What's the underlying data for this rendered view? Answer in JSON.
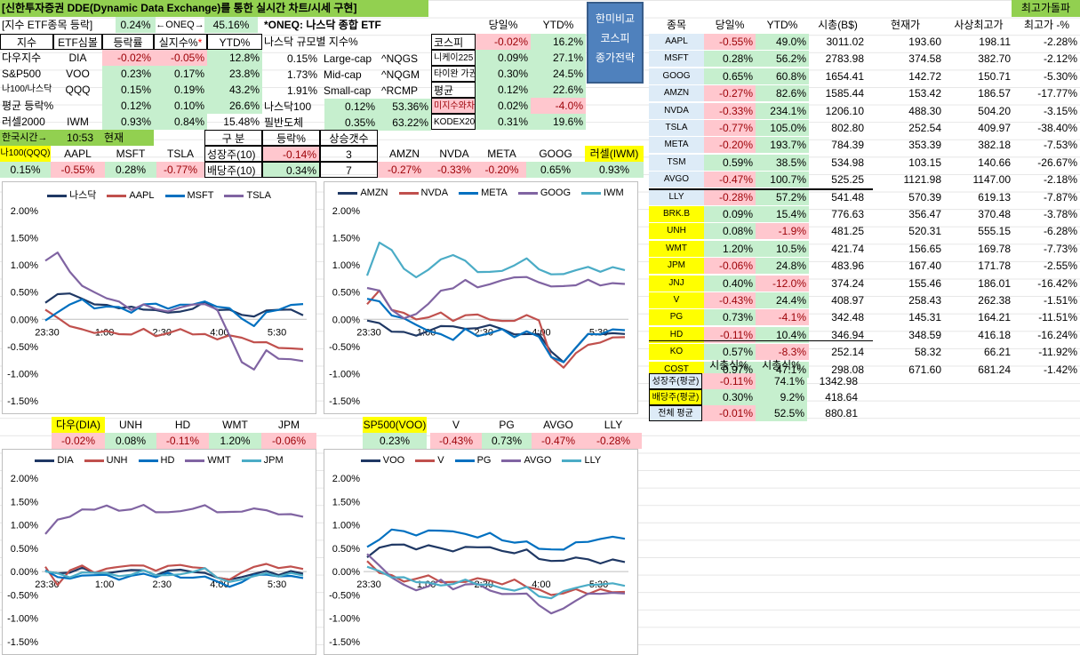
{
  "header": {
    "title": "[신한투자증권 DDE(Dynamic Data Exchange)를 통한 실시간 차트/시세 구현]",
    "top_right": "최고가돌파"
  },
  "index_panel": {
    "label": "[지수 ETF종목 등락]",
    "pct": "0.24%",
    "oneq_label": "←ONEQ→",
    "oneq_val": "45.16%",
    "headers": [
      "지수",
      "ETF심볼",
      "등락률",
      "실지수%",
      "YTD%"
    ],
    "star": "*",
    "rows": [
      {
        "name": "다우지수",
        "sym": "DIA",
        "chg": "-0.02%",
        "real": "-0.05%",
        "ytd": "12.8%"
      },
      {
        "name": "S&P500",
        "sym": "VOO",
        "chg": "0.23%",
        "real": "0.17%",
        "ytd": "23.8%"
      },
      {
        "name": "나100/나스닥",
        "sym": "QQQ",
        "chg": "0.15%",
        "real": "0.19%",
        "ytd": "43.2%"
      },
      {
        "name": "평균 등락%",
        "sym": "",
        "chg": "0.12%",
        "real": "0.10%",
        "ytd": "26.6%"
      },
      {
        "name": "러셀2000",
        "sym": "IWM",
        "chg": "0.93%",
        "real": "0.84%",
        "ytd": "15.48%"
      }
    ],
    "kr_time_label": "한국시간→",
    "kr_time": "10:53",
    "kr_now": "현재"
  },
  "oneq": {
    "title": "*ONEQ: 나스닥 종합 ETF",
    "sub": "나스닥 규모별 지수%",
    "rows": [
      {
        "pct": "0.15%",
        "name": "Large-cap",
        "sym": "^NQGS"
      },
      {
        "pct": "1.73%",
        "name": "Mid-cap",
        "sym": "^NQGM"
      },
      {
        "pct": "1.91%",
        "name": "Small-cap",
        "sym": "^RCMP"
      }
    ],
    "n100_label": "나스닥100",
    "n100_a": "0.12%",
    "n100_b": "53.36%",
    "phil_label": "필반도체",
    "phil_a": "0.35%",
    "phil_b": "63.22%"
  },
  "asia": {
    "headers": [
      "",
      "당일%",
      "YTD%"
    ],
    "rows": [
      {
        "name": "코스피",
        "day": "-0.02%",
        "ytd": "16.2%"
      },
      {
        "name": "니케이225",
        "day": "0.09%",
        "ytd": "27.1%"
      },
      {
        "name": "타이완 가권",
        "day": "0.30%",
        "ytd": "24.5%"
      },
      {
        "name": "평균",
        "day": "0.12%",
        "ytd": "22.6%"
      },
      {
        "name": "미지수와차",
        "day": "0.02%",
        "ytd": "-4.0%"
      },
      {
        "name": "KODEX200",
        "day": "0.31%",
        "ytd": "19.6%"
      }
    ]
  },
  "compare_button": {
    "line1": "한미비교",
    "line2": "코스피",
    "line3": "종가전략"
  },
  "growth_div": {
    "h1": "구 분",
    "h2": "등락%",
    "h3": "상승갯수",
    "r1": {
      "name": "성장주(10)",
      "chg": "-0.14%",
      "cnt": "3"
    },
    "r2": {
      "name": "배당주(10)",
      "chg": "0.34%",
      "cnt": "7"
    }
  },
  "ticker_row1": {
    "labels": [
      "나100(QQQ)",
      "AAPL",
      "MSFT",
      "TSLA",
      "AMZN",
      "NVDA",
      "META",
      "GOOG",
      "러셀(IWM)"
    ],
    "values": [
      "0.15%",
      "-0.55%",
      "0.28%",
      "-0.77%",
      "-0.27%",
      "-0.33%",
      "-0.20%",
      "0.65%",
      "0.93%"
    ]
  },
  "ticker_row2": {
    "labels": [
      "다우(DIA)",
      "UNH",
      "HD",
      "WMT",
      "JPM",
      "SP500(VOO)",
      "V",
      "PG",
      "AVGO",
      "LLY"
    ],
    "values": [
      "-0.02%",
      "0.08%",
      "-0.11%",
      "1.20%",
      "-0.06%",
      "0.23%",
      "-0.43%",
      "0.73%",
      "-0.47%",
      "-0.28%"
    ]
  },
  "stocks": {
    "headers": [
      "종목",
      "당일%",
      "YTD%",
      "시총(B$)",
      "현재가",
      "사상최고가",
      "최고가 -%"
    ],
    "rows": [
      {
        "sym": "AAPL",
        "day": "-0.55%",
        "ytd": "49.0%",
        "cap": "3011.02",
        "price": "193.60",
        "high": "198.11",
        "off": "-2.28%"
      },
      {
        "sym": "MSFT",
        "day": "0.28%",
        "ytd": "56.2%",
        "cap": "2783.98",
        "price": "374.58",
        "high": "382.70",
        "off": "-2.12%"
      },
      {
        "sym": "GOOG",
        "day": "0.65%",
        "ytd": "60.8%",
        "cap": "1654.41",
        "price": "142.72",
        "high": "150.71",
        "off": "-5.30%"
      },
      {
        "sym": "AMZN",
        "day": "-0.27%",
        "ytd": "82.6%",
        "cap": "1585.44",
        "price": "153.42",
        "high": "186.57",
        "off": "-17.77%"
      },
      {
        "sym": "NVDA",
        "day": "-0.33%",
        "ytd": "234.1%",
        "cap": "1206.10",
        "price": "488.30",
        "high": "504.20",
        "off": "-3.15%"
      },
      {
        "sym": "TSLA",
        "day": "-0.77%",
        "ytd": "105.0%",
        "cap": "802.80",
        "price": "252.54",
        "high": "409.97",
        "off": "-38.40%"
      },
      {
        "sym": "META",
        "day": "-0.20%",
        "ytd": "193.7%",
        "cap": "784.39",
        "price": "353.39",
        "high": "382.18",
        "off": "-7.53%"
      },
      {
        "sym": "TSM",
        "day": "0.59%",
        "ytd": "38.5%",
        "cap": "534.98",
        "price": "103.15",
        "high": "140.66",
        "off": "-26.67%"
      },
      {
        "sym": "AVGO",
        "day": "-0.47%",
        "ytd": "100.7%",
        "cap": "525.25",
        "price": "1121.98",
        "high": "1147.00",
        "off": "-2.18%"
      },
      {
        "sym": "LLY",
        "day": "-0.28%",
        "ytd": "57.2%",
        "cap": "541.48",
        "price": "570.39",
        "high": "619.13",
        "off": "-7.87%"
      },
      {
        "sym": "BRK.B",
        "day": "0.09%",
        "ytd": "15.4%",
        "cap": "776.63",
        "price": "356.47",
        "high": "370.48",
        "off": "-3.78%"
      },
      {
        "sym": "UNH",
        "day": "0.08%",
        "ytd": "-1.9%",
        "cap": "481.25",
        "price": "520.31",
        "high": "555.15",
        "off": "-6.28%"
      },
      {
        "sym": "WMT",
        "day": "1.20%",
        "ytd": "10.5%",
        "cap": "421.74",
        "price": "156.65",
        "high": "169.78",
        "off": "-7.73%"
      },
      {
        "sym": "JPM",
        "day": "-0.06%",
        "ytd": "24.8%",
        "cap": "483.96",
        "price": "167.40",
        "high": "171.78",
        "off": "-2.55%"
      },
      {
        "sym": "JNJ",
        "day": "0.40%",
        "ytd": "-12.0%",
        "cap": "374.24",
        "price": "155.46",
        "high": "186.01",
        "off": "-16.42%"
      },
      {
        "sym": "V",
        "day": "-0.43%",
        "ytd": "24.4%",
        "cap": "408.97",
        "price": "258.43",
        "high": "262.38",
        "off": "-1.51%"
      },
      {
        "sym": "PG",
        "day": "0.73%",
        "ytd": "-4.1%",
        "cap": "342.48",
        "price": "145.31",
        "high": "164.21",
        "off": "-11.51%"
      },
      {
        "sym": "HD",
        "day": "-0.11%",
        "ytd": "10.4%",
        "cap": "346.94",
        "price": "348.59",
        "high": "416.18",
        "off": "-16.24%"
      },
      {
        "sym": "KO",
        "day": "0.57%",
        "ytd": "-8.3%",
        "cap": "252.14",
        "price": "58.32",
        "high": "66.21",
        "off": "-11.92%"
      },
      {
        "sym": "COST",
        "day": "0.97%",
        "ytd": "47.1%",
        "cap": "298.08",
        "price": "671.60",
        "high": "681.24",
        "off": "-1.42%"
      }
    ]
  },
  "summary": {
    "h1": "시총식%",
    "h2": "시총식%",
    "rows": [
      {
        "name": "성장주(평균)",
        "a": "-0.11%",
        "b": "74.1%",
        "c": "1342.98"
      },
      {
        "name": "배당주(평균)",
        "a": "0.30%",
        "b": "9.2%",
        "c": "418.64"
      },
      {
        "name": "전체 평균",
        "a": "-0.01%",
        "b": "52.5%",
        "c": "880.81"
      }
    ]
  },
  "colors": {
    "navy": "#1f3864",
    "red": "#c0504d",
    "blue": "#0070c0",
    "purple": "#8064a2",
    "teal": "#4bacc6"
  },
  "chart_data": [
    {
      "type": "line",
      "title": "",
      "x_ticks": [
        "23:30",
        "1:00",
        "2:30",
        "4:00",
        "5:30"
      ],
      "y_ticks": [
        "2.00%",
        "1.50%",
        "1.00%",
        "0.50%",
        "0.00%",
        "-0.50%",
        "-1.00%",
        "-1.50%"
      ],
      "ylim": [
        -1.5,
        2.0
      ],
      "series": [
        {
          "name": "나스닥",
          "color": "#1f3864",
          "values": [
            0.3,
            0.45,
            0.5,
            0.35,
            0.3,
            0.25,
            0.2,
            0.25,
            0.15,
            0.2,
            0.1,
            0.15,
            0.2,
            0.3,
            0.2,
            0.15,
            0.1,
            0.05,
            0.15,
            0.2,
            0.15,
            0.1
          ]
        },
        {
          "name": "AAPL",
          "color": "#c0504d",
          "values": [
            0.2,
            0.0,
            -0.1,
            -0.2,
            -0.25,
            -0.2,
            -0.3,
            -0.25,
            -0.2,
            -0.3,
            -0.25,
            -0.2,
            -0.25,
            -0.3,
            -0.35,
            -0.3,
            -0.35,
            -0.4,
            -0.45,
            -0.5,
            -0.55,
            -0.55
          ]
        },
        {
          "name": "MSFT",
          "color": "#0070c0",
          "values": [
            0.0,
            0.1,
            0.3,
            0.35,
            0.2,
            0.25,
            0.2,
            0.15,
            0.25,
            0.3,
            0.2,
            0.25,
            0.3,
            0.3,
            0.25,
            0.2,
            0.0,
            -0.1,
            0.1,
            0.2,
            0.25,
            0.28
          ]
        },
        {
          "name": "TSLA",
          "color": "#8064a2",
          "values": [
            1.1,
            1.2,
            0.9,
            0.6,
            0.5,
            0.4,
            0.3,
            0.2,
            0.25,
            0.2,
            0.15,
            0.2,
            0.3,
            0.25,
            0.2,
            -0.3,
            -0.8,
            -0.9,
            -0.6,
            -0.7,
            -0.75,
            -0.77
          ]
        }
      ]
    },
    {
      "type": "line",
      "title": "",
      "x_ticks": [
        "23:30",
        "1:00",
        "2:30",
        "4:00",
        "5:30"
      ],
      "y_ticks": [
        "2.00%",
        "1.50%",
        "1.00%",
        "0.50%",
        "0.00%",
        "-0.50%",
        "-1.00%",
        "-1.50%"
      ],
      "ylim": [
        -1.5,
        2.0
      ],
      "series": [
        {
          "name": "AMZN",
          "color": "#1f3864",
          "values": [
            0.0,
            -0.1,
            -0.2,
            -0.25,
            -0.3,
            -0.2,
            -0.15,
            -0.1,
            -0.2,
            -0.15,
            -0.1,
            -0.2,
            -0.25,
            -0.3,
            -0.25,
            -0.6,
            -0.8,
            -0.5,
            -0.3,
            -0.25,
            -0.27,
            -0.27
          ]
        },
        {
          "name": "NVDA",
          "color": "#c0504d",
          "values": [
            0.3,
            0.5,
            0.2,
            0.1,
            0.0,
            0.05,
            0.1,
            0.0,
            0.05,
            0.1,
            0.0,
            -0.05,
            0.0,
            0.05,
            0.0,
            -0.7,
            -0.9,
            -0.6,
            -0.5,
            -0.4,
            -0.35,
            -0.33
          ]
        },
        {
          "name": "META",
          "color": "#0070c0",
          "values": [
            0.4,
            0.3,
            0.1,
            0.0,
            -0.1,
            -0.2,
            -0.3,
            -0.35,
            -0.2,
            -0.3,
            -0.25,
            -0.2,
            -0.3,
            -0.25,
            -0.3,
            -0.7,
            -0.8,
            -0.5,
            -0.3,
            -0.25,
            -0.2,
            -0.2
          ]
        },
        {
          "name": "GOOG",
          "color": "#8064a2",
          "values": [
            0.6,
            0.5,
            0.2,
            0.0,
            0.1,
            0.3,
            0.5,
            0.6,
            0.7,
            0.6,
            0.65,
            0.7,
            0.8,
            0.75,
            0.7,
            0.6,
            0.6,
            0.65,
            0.7,
            0.65,
            0.65,
            0.65
          ]
        },
        {
          "name": "IWM",
          "color": "#4bacc6",
          "values": [
            0.8,
            1.4,
            1.3,
            0.9,
            0.8,
            0.9,
            1.1,
            1.2,
            1.05,
            0.9,
            0.85,
            0.9,
            1.0,
            1.1,
            0.95,
            0.8,
            0.85,
            0.9,
            0.95,
            0.9,
            0.93,
            0.93
          ]
        }
      ]
    },
    {
      "type": "line",
      "title": "",
      "x_ticks": [
        "23:30",
        "1:00",
        "2:30",
        "4:00",
        "5:30"
      ],
      "y_ticks": [
        "2.00%",
        "1.50%",
        "1.00%",
        "0.50%",
        "0.00%",
        "-0.50%",
        "-1.00%",
        "-1.50%"
      ],
      "ylim": [
        -1.5,
        2.0
      ],
      "series": [
        {
          "name": "DIA",
          "color": "#1f3864",
          "values": [
            0.0,
            -0.05,
            0.0,
            0.05,
            0.0,
            -0.05,
            0.0,
            0.05,
            0.0,
            -0.05,
            0.0,
            0.05,
            0.0,
            -0.05,
            -0.1,
            -0.2,
            -0.1,
            -0.05,
            0.0,
            -0.05,
            -0.02,
            -0.02
          ]
        },
        {
          "name": "UNH",
          "color": "#c0504d",
          "values": [
            0.1,
            -0.3,
            0.05,
            0.1,
            0.0,
            0.05,
            0.1,
            0.15,
            0.1,
            0.05,
            0.1,
            0.15,
            0.1,
            0.05,
            -0.1,
            -0.2,
            0.0,
            0.1,
            0.15,
            0.1,
            0.08,
            0.08
          ]
        },
        {
          "name": "HD",
          "color": "#0070c0",
          "values": [
            0.0,
            -0.1,
            -0.15,
            -0.1,
            -0.05,
            -0.1,
            -0.15,
            -0.1,
            -0.05,
            -0.1,
            -0.05,
            -0.1,
            -0.15,
            -0.1,
            -0.2,
            -0.35,
            -0.2,
            -0.1,
            -0.05,
            -0.1,
            -0.11,
            -0.11
          ]
        },
        {
          "name": "WMT",
          "color": "#8064a2",
          "values": [
            0.8,
            1.1,
            1.2,
            1.3,
            1.35,
            1.4,
            1.3,
            1.35,
            1.4,
            1.3,
            1.25,
            1.3,
            1.35,
            1.4,
            1.3,
            1.25,
            1.3,
            1.35,
            1.3,
            1.25,
            1.2,
            1.2
          ]
        },
        {
          "name": "JPM",
          "color": "#4bacc6",
          "values": [
            0.0,
            -0.05,
            -0.1,
            -0.05,
            0.0,
            -0.05,
            -0.1,
            -0.05,
            0.0,
            -0.05,
            -0.1,
            -0.05,
            0.0,
            0.05,
            -0.1,
            -0.25,
            -0.15,
            -0.1,
            -0.05,
            -0.08,
            -0.06,
            -0.06
          ]
        }
      ]
    },
    {
      "type": "line",
      "title": "",
      "x_ticks": [
        "23:30",
        "1:00",
        "2:30",
        "4:00",
        "5:30"
      ],
      "y_ticks": [
        "2.00%",
        "1.50%",
        "1.00%",
        "0.50%",
        "0.00%",
        "-0.50%",
        "-1.00%",
        "-1.50%"
      ],
      "ylim": [
        -1.5,
        2.0
      ],
      "series": [
        {
          "name": "VOO",
          "color": "#1f3864",
          "values": [
            0.3,
            0.5,
            0.6,
            0.55,
            0.5,
            0.55,
            0.5,
            0.45,
            0.5,
            0.55,
            0.5,
            0.45,
            0.4,
            0.45,
            0.3,
            0.2,
            0.25,
            0.3,
            0.25,
            0.2,
            0.23,
            0.23
          ]
        },
        {
          "name": "V",
          "color": "#c0504d",
          "values": [
            0.2,
            0.0,
            -0.1,
            -0.2,
            -0.15,
            -0.1,
            -0.2,
            -0.25,
            -0.2,
            -0.15,
            -0.2,
            -0.25,
            -0.2,
            -0.3,
            -0.4,
            -0.5,
            -0.45,
            -0.4,
            -0.45,
            -0.4,
            -0.43,
            -0.43
          ]
        },
        {
          "name": "PG",
          "color": "#0070c0",
          "values": [
            0.5,
            0.7,
            0.9,
            0.85,
            0.8,
            0.85,
            0.9,
            0.85,
            0.8,
            0.75,
            0.8,
            0.7,
            0.6,
            0.65,
            0.5,
            0.45,
            0.5,
            0.6,
            0.65,
            0.7,
            0.73,
            0.73
          ]
        },
        {
          "name": "AVGO",
          "color": "#8064a2",
          "values": [
            0.4,
            0.1,
            -0.1,
            -0.3,
            -0.4,
            -0.3,
            -0.2,
            -0.35,
            -0.3,
            -0.25,
            -0.4,
            -0.5,
            -0.45,
            -0.5,
            -0.7,
            -0.9,
            -0.8,
            -0.6,
            -0.5,
            -0.45,
            -0.47,
            -0.47
          ]
        },
        {
          "name": "LLY",
          "color": "#4bacc6",
          "values": [
            0.1,
            0.0,
            -0.1,
            -0.15,
            -0.2,
            -0.25,
            -0.3,
            -0.25,
            -0.2,
            -0.25,
            -0.3,
            -0.35,
            -0.4,
            -0.35,
            -0.5,
            -0.6,
            -0.4,
            -0.35,
            -0.3,
            -0.25,
            -0.28,
            -0.28
          ]
        }
      ]
    }
  ]
}
